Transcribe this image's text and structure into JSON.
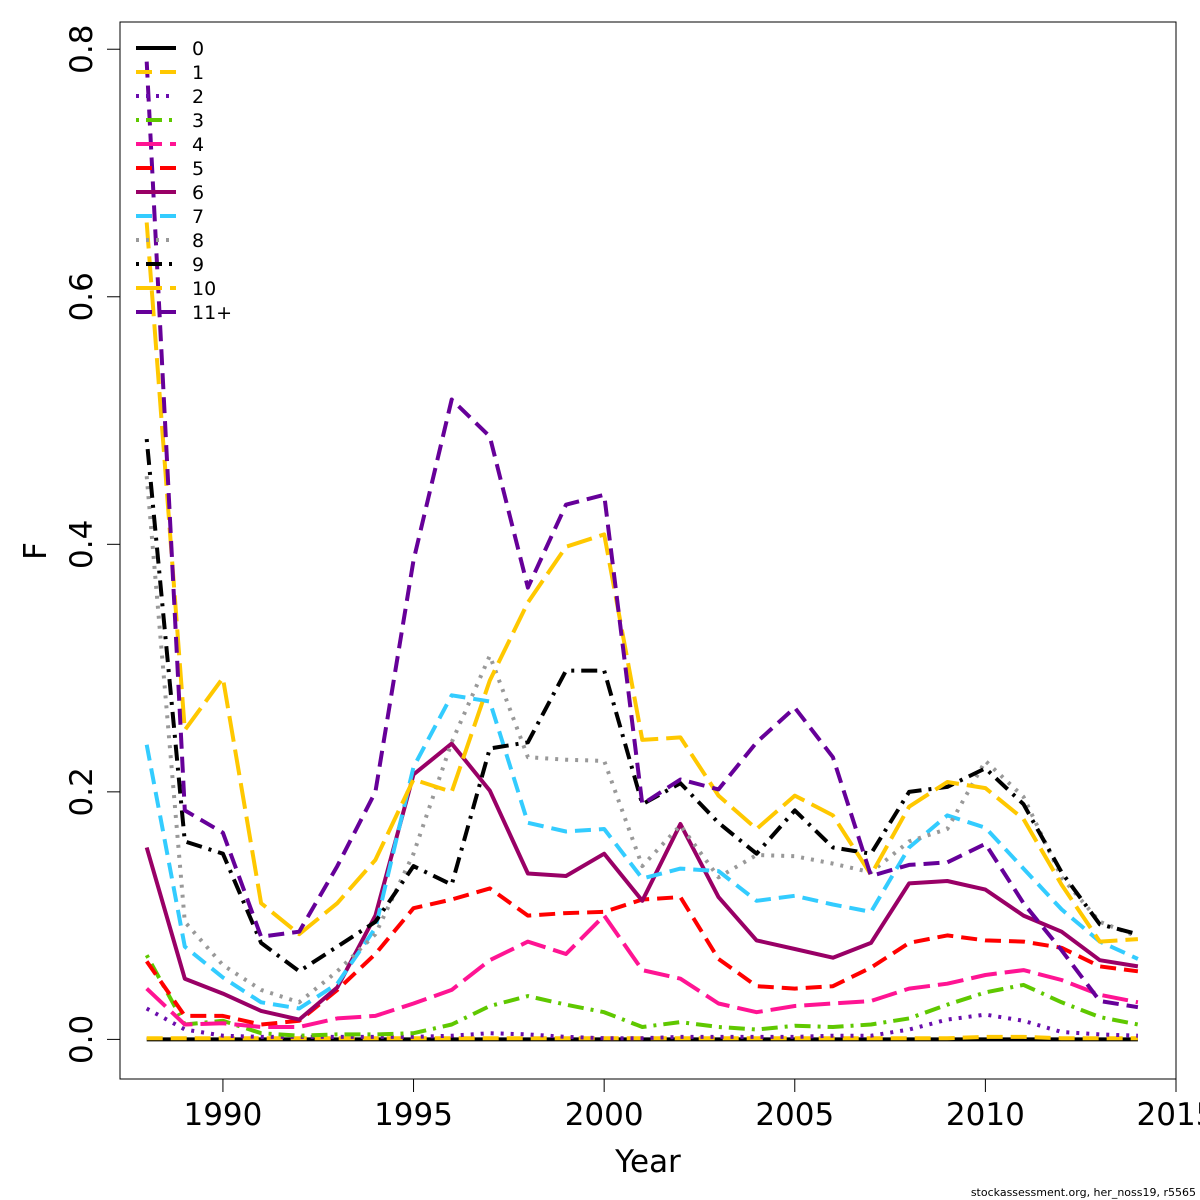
{
  "chart_data": {
    "type": "line",
    "xlabel": "Year",
    "ylabel": "F",
    "xlim": [
      1987.3,
      2015
    ],
    "ylim": [
      -0.032,
      0.822
    ],
    "xticks": [
      1990,
      1995,
      2000,
      2005,
      2010,
      2015
    ],
    "yticks": [
      0.0,
      0.2,
      0.4,
      0.6,
      0.8
    ],
    "ytick_labels": [
      "0.0",
      "0.2",
      "0.4",
      "0.6",
      "0.8"
    ],
    "legend_position": "top-left",
    "footnote": "stockassessment.org, her_noss19, r5565",
    "x": [
      1988,
      1989,
      1990,
      1991,
      1992,
      1993,
      1994,
      1995,
      1996,
      1997,
      1998,
      1999,
      2000,
      2001,
      2002,
      2003,
      2004,
      2005,
      2006,
      2007,
      2008,
      2009,
      2010,
      2011,
      2012,
      2013,
      2014
    ],
    "series": [
      {
        "name": "0",
        "color": "#000000",
        "dash": "solid",
        "values": [
          0,
          0,
          0,
          0,
          0,
          0,
          0,
          0,
          0,
          0,
          0,
          0,
          0,
          0,
          0,
          0,
          0,
          0,
          0,
          0,
          0,
          0,
          0,
          0,
          0,
          0,
          0
        ]
      },
      {
        "name": "1",
        "color": "#FFC800",
        "dash": "dashed",
        "values": [
          0.001,
          0.001,
          0.001,
          0.001,
          0.001,
          0.001,
          0.001,
          0.001,
          0.001,
          0.001,
          0.001,
          0.001,
          0.001,
          0.001,
          0.001,
          0.001,
          0.001,
          0.001,
          0.001,
          0.001,
          0.001,
          0.001,
          0.002,
          0.002,
          0.001,
          0.001,
          0.001
        ]
      },
      {
        "name": "2",
        "color": "#6A0DAD",
        "dash": "dotted",
        "values": [
          0.025,
          0.008,
          0.003,
          0.002,
          0.002,
          0.002,
          0.002,
          0.002,
          0.003,
          0.005,
          0.004,
          0.002,
          0.001,
          0.001,
          0.002,
          0.002,
          0.002,
          0.002,
          0.003,
          0.003,
          0.008,
          0.016,
          0.02,
          0.015,
          0.006,
          0.004,
          0.003
        ]
      },
      {
        "name": "3",
        "color": "#5FC800",
        "dash": "dotdash",
        "values": [
          0.068,
          0.012,
          0.015,
          0.005,
          0.003,
          0.004,
          0.004,
          0.005,
          0.012,
          0.027,
          0.035,
          0.028,
          0.022,
          0.01,
          0.014,
          0.01,
          0.008,
          0.011,
          0.01,
          0.012,
          0.017,
          0.028,
          0.038,
          0.044,
          0.03,
          0.018,
          0.012
        ]
      },
      {
        "name": "4",
        "color": "#FF1493",
        "dash": "longdash",
        "values": [
          0.041,
          0.012,
          0.013,
          0.01,
          0.01,
          0.017,
          0.019,
          0.029,
          0.04,
          0.064,
          0.079,
          0.069,
          0.1,
          0.056,
          0.049,
          0.029,
          0.022,
          0.027,
          0.029,
          0.031,
          0.041,
          0.045,
          0.052,
          0.056,
          0.048,
          0.036,
          0.03
        ]
      },
      {
        "name": "5",
        "color": "#FF0000",
        "dash": "dashed",
        "values": [
          0.063,
          0.019,
          0.019,
          0.012,
          0.015,
          0.04,
          0.069,
          0.106,
          0.113,
          0.122,
          0.1,
          0.102,
          0.103,
          0.113,
          0.115,
          0.065,
          0.043,
          0.041,
          0.043,
          0.058,
          0.078,
          0.084,
          0.08,
          0.079,
          0.074,
          0.059,
          0.055
        ]
      },
      {
        "name": "6",
        "color": "#990066",
        "dash": "solid",
        "values": [
          0.155,
          0.049,
          0.037,
          0.023,
          0.016,
          0.042,
          0.1,
          0.214,
          0.239,
          0.201,
          0.134,
          0.132,
          0.15,
          0.112,
          0.174,
          0.115,
          0.08,
          0.073,
          0.066,
          0.078,
          0.126,
          0.128,
          0.121,
          0.1,
          0.087,
          0.064,
          0.059
        ]
      },
      {
        "name": "7",
        "color": "#33CCFF",
        "dash": "dashed",
        "values": [
          0.238,
          0.075,
          0.05,
          0.03,
          0.025,
          0.045,
          0.09,
          0.22,
          0.278,
          0.273,
          0.175,
          0.168,
          0.17,
          0.13,
          0.138,
          0.136,
          0.112,
          0.116,
          0.109,
          0.103,
          0.155,
          0.181,
          0.171,
          0.138,
          0.105,
          0.079,
          0.065
        ]
      },
      {
        "name": "8",
        "color": "#999999",
        "dash": "dotted",
        "values": [
          0.455,
          0.095,
          0.06,
          0.04,
          0.03,
          0.055,
          0.085,
          0.15,
          0.24,
          0.31,
          0.228,
          0.226,
          0.225,
          0.14,
          0.173,
          0.131,
          0.149,
          0.148,
          0.142,
          0.135,
          0.16,
          0.17,
          0.225,
          0.196,
          0.131,
          0.095,
          0.083
        ]
      },
      {
        "name": "9",
        "color": "#000000",
        "dash": "dotdash",
        "values": [
          0.485,
          0.16,
          0.15,
          0.078,
          0.055,
          0.075,
          0.095,
          0.14,
          0.125,
          0.235,
          0.24,
          0.298,
          0.298,
          0.19,
          0.207,
          0.175,
          0.15,
          0.185,
          0.155,
          0.15,
          0.2,
          0.204,
          0.219,
          0.19,
          0.135,
          0.093,
          0.085
        ]
      },
      {
        "name": "10",
        "color": "#FFC800",
        "dash": "longdash",
        "values": [
          0.66,
          0.25,
          0.292,
          0.11,
          0.085,
          0.11,
          0.145,
          0.21,
          0.2,
          0.29,
          0.353,
          0.398,
          0.408,
          0.242,
          0.244,
          0.197,
          0.17,
          0.197,
          0.181,
          0.133,
          0.188,
          0.208,
          0.203,
          0.178,
          0.125,
          0.079,
          0.081
        ]
      },
      {
        "name": "11+",
        "color": "#660099",
        "dash": "dashed",
        "values": [
          0.79,
          0.185,
          0.167,
          0.083,
          0.087,
          0.14,
          0.2,
          0.387,
          0.517,
          0.487,
          0.365,
          0.432,
          0.44,
          0.19,
          0.21,
          0.202,
          0.24,
          0.268,
          0.228,
          0.132,
          0.141,
          0.143,
          0.158,
          0.11,
          0.072,
          0.031,
          0.026
        ]
      }
    ]
  }
}
